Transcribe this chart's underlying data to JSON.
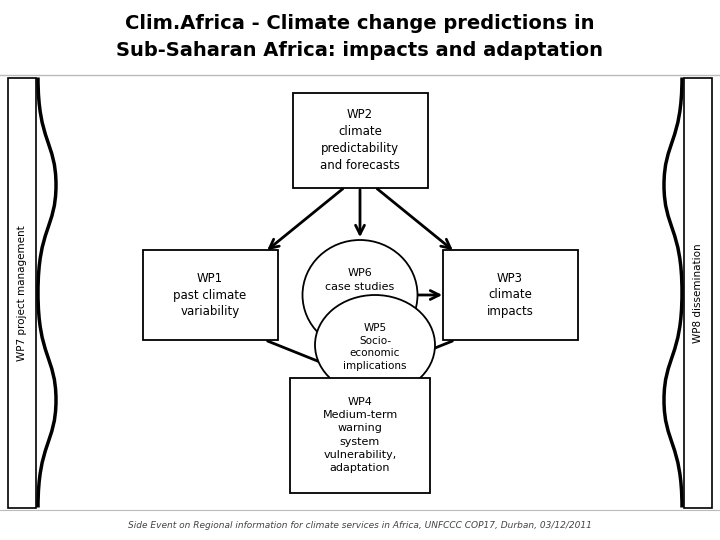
{
  "title_line1": "Clim.Africa - Climate change predictions in",
  "title_line2": "Sub-Saharan Africa: impacts and adaptation",
  "footer": "Side Event on Regional information for climate services in Africa, UNFCCC COP17, Durban, 03/12/2011",
  "wp1_text": "WP1\npast climate\nvariability",
  "wp2_text": "WP2\nclimate\npredictability\nand forecasts",
  "wp3_text": "WP3\nclimate\nimpacts",
  "wp4_text": "WP4\nMedium-term\nwarning\nsystem\nvulnerability,\nadaptation",
  "wp5_text": "WP5\nSocio-\neconomic\nimplications",
  "wp6_text": "WP6\ncase studies",
  "wp7_text": "WP7 project management",
  "wp8_text": "WP8 dissemination",
  "bg_color": "#ffffff",
  "box_color": "#ffffff",
  "box_edgecolor": "#000000",
  "arrow_color": "#000000",
  "text_color": "#000000",
  "footer_color": "#444444",
  "title_color": "#000000",
  "sep_color": "#bbbbbb"
}
